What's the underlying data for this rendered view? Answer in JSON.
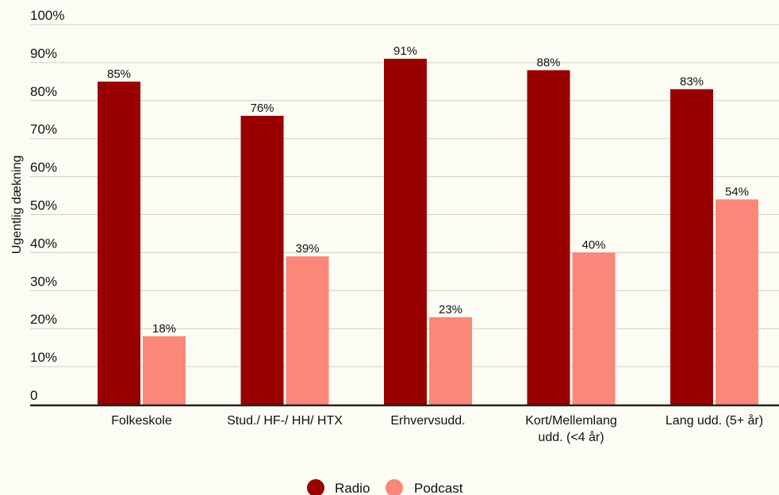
{
  "chart_data": {
    "type": "bar",
    "ylabel": "Ugentlig dækning",
    "xlabel": "",
    "ylim": [
      0,
      100
    ],
    "yticks": [
      "0",
      "10%",
      "20%",
      "30%",
      "40%",
      "50%",
      "60%",
      "70%",
      "80%",
      "90%",
      "100%"
    ],
    "categories": [
      [
        "Folkeskole"
      ],
      [
        "Stud./ HF-/ HH/ HTX"
      ],
      [
        "Erhvervsudd."
      ],
      [
        "Kort/Mellemlang",
        "udd. (<4 år)"
      ],
      [
        "Lang udd. (5+ år)"
      ]
    ],
    "series": [
      {
        "name": "Radio",
        "color": "#990000",
        "values": [
          85,
          76,
          91,
          88,
          83
        ],
        "labels": [
          "85%",
          "76%",
          "91%",
          "88%",
          "83%"
        ]
      },
      {
        "name": "Podcast",
        "color": "#fa8778",
        "values": [
          18,
          39,
          23,
          40,
          54
        ],
        "labels": [
          "18%",
          "39%",
          "23%",
          "40%",
          "54%"
        ]
      }
    ],
    "grid": true,
    "legend": "bottom-center"
  }
}
